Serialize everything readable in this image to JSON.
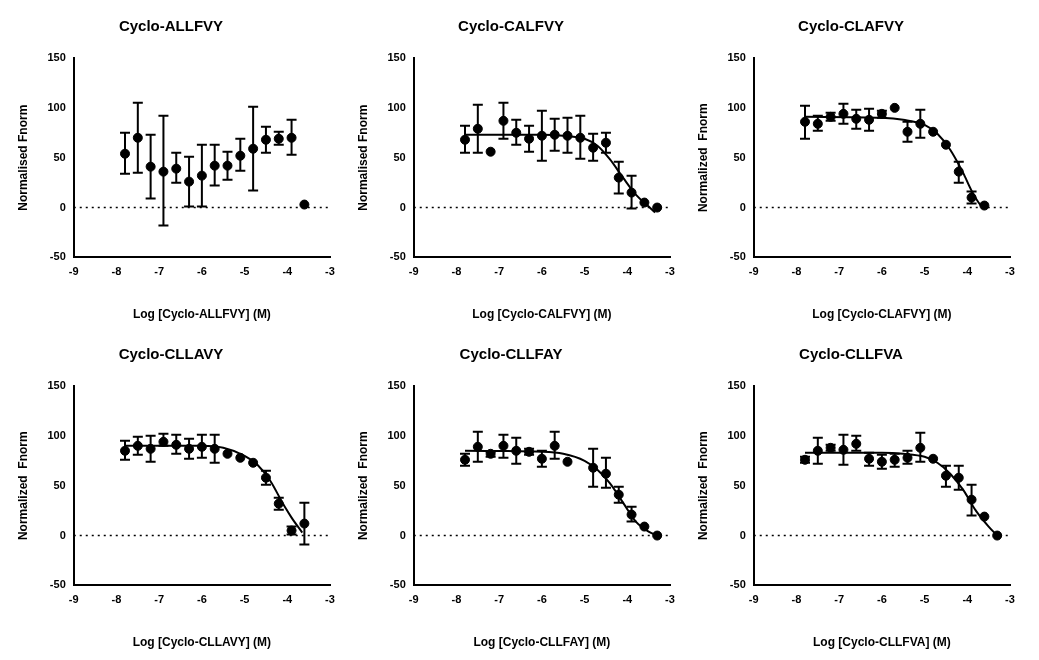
{
  "chart_data": [
    {
      "type": "scatter",
      "title": "Cyclo-ALLFVY",
      "xlabel": "Log [Cyclo-ALLFVY] (M)",
      "ylabel": "Normalised Fnorm",
      "xlim": [
        -9,
        -3
      ],
      "xticks": [
        -9,
        -8,
        -7,
        -6,
        -5,
        -4,
        -3
      ],
      "ylim": [
        -50,
        150
      ],
      "yticks": [
        -50,
        0,
        50,
        100,
        150
      ],
      "grid": false,
      "legend": false,
      "ref_lines": [
        {
          "axis": "y",
          "value": 0,
          "line_style": "dotted",
          "color": "#000000"
        }
      ],
      "series": [
        {
          "type": "scatter",
          "marker": "circle",
          "color": "#000000",
          "x": [
            -7.8,
            -7.5,
            -7.2,
            -6.9,
            -6.6,
            -6.3,
            -6.0,
            -5.7,
            -5.4,
            -5.1,
            -4.8,
            -4.5,
            -4.2,
            -3.9,
            -3.6
          ],
          "values": [
            54,
            70,
            41,
            36,
            39,
            26,
            32,
            42,
            42,
            52,
            59,
            68,
            69,
            70,
            3
          ],
          "errors": [
            [
              34,
              75
            ],
            [
              35,
              105
            ],
            [
              9,
              73
            ],
            [
              -18,
              92
            ],
            [
              25,
              55
            ],
            [
              1,
              51
            ],
            [
              1,
              63
            ],
            [
              22,
              63
            ],
            [
              28,
              56
            ],
            [
              37,
              69
            ],
            [
              17,
              101
            ],
            [
              55,
              81
            ],
            [
              63,
              76
            ],
            [
              53,
              88
            ],
            null
          ]
        }
      ]
    },
    {
      "type": "scatter",
      "title": "Cyclo-CALFVY",
      "xlabel": "Log [Cyclo-CALFVY] (M)",
      "ylabel": "Normalised Fnorm",
      "xlim": [
        -9,
        -3
      ],
      "xticks": [
        -9,
        -8,
        -7,
        -6,
        -5,
        -4,
        -3
      ],
      "ylim": [
        -50,
        150
      ],
      "yticks": [
        -50,
        0,
        50,
        100,
        150
      ],
      "grid": false,
      "legend": false,
      "ref_lines": [
        {
          "axis": "y",
          "value": 0,
          "line_style": "dotted",
          "color": "#000000"
        }
      ],
      "series": [
        {
          "type": "scatter",
          "marker": "circle",
          "color": "#000000",
          "x": [
            -7.8,
            -7.5,
            -7.2,
            -6.9,
            -6.6,
            -6.3,
            -6.0,
            -5.7,
            -5.4,
            -5.1,
            -4.8,
            -4.5,
            -4.2,
            -3.9,
            -3.6,
            -3.3
          ],
          "values": [
            68,
            79,
            56,
            87,
            75,
            69,
            72,
            73,
            72,
            70,
            60,
            65,
            30,
            15,
            5,
            0
          ],
          "errors": [
            [
              55,
              82
            ],
            [
              55,
              103
            ],
            null,
            [
              69,
              105
            ],
            [
              63,
              88
            ],
            [
              56,
              82
            ],
            [
              47,
              97
            ],
            [
              57,
              89
            ],
            [
              55,
              90
            ],
            [
              49,
              92
            ],
            [
              47,
              74
            ],
            [
              55,
              75
            ],
            [
              14,
              46
            ],
            [
              -1,
              32
            ],
            null,
            null
          ]
        },
        {
          "type": "line",
          "marker": "none",
          "color": "#000000",
          "x": [
            -7.8,
            -6,
            -5.5,
            -5,
            -4.7,
            -4.4,
            -4.1,
            -3.8,
            -3.5,
            -3.35
          ],
          "values": [
            73,
            73,
            72,
            69,
            62,
            48,
            30,
            13,
            1,
            -5
          ]
        }
      ]
    },
    {
      "type": "scatter",
      "title": "Cyclo-CLAFVY",
      "xlabel": "Log [Cyclo-CLAFVY] (M)",
      "ylabel": "Normalized  Fnorm",
      "xlim": [
        -9,
        -3
      ],
      "xticks": [
        -9,
        -8,
        -7,
        -6,
        -5,
        -4,
        -3
      ],
      "ylim": [
        -50,
        150
      ],
      "yticks": [
        -50,
        0,
        50,
        100,
        150
      ],
      "grid": false,
      "legend": false,
      "ref_lines": [
        {
          "axis": "y",
          "value": 0,
          "line_style": "dotted",
          "color": "#000000"
        }
      ],
      "series": [
        {
          "type": "scatter",
          "marker": "circle",
          "color": "#000000",
          "x": [
            -7.8,
            -7.5,
            -7.2,
            -6.9,
            -6.6,
            -6.3,
            -6.0,
            -5.7,
            -5.4,
            -5.1,
            -4.8,
            -4.5,
            -4.2,
            -3.9,
            -3.6
          ],
          "values": [
            86,
            84,
            91,
            94,
            89,
            88,
            94,
            100,
            76,
            84,
            76,
            63,
            36,
            10,
            2
          ],
          "errors": [
            [
              69,
              102
            ],
            [
              77,
              92
            ],
            [
              87,
              95
            ],
            [
              84,
              104
            ],
            [
              79,
              98
            ],
            [
              77,
              99
            ],
            [
              90,
              97
            ],
            null,
            [
              66,
              86
            ],
            [
              70,
              98
            ],
            null,
            null,
            [
              25,
              46
            ],
            [
              4,
              16
            ],
            null
          ]
        },
        {
          "type": "line",
          "marker": "none",
          "color": "#000000",
          "x": [
            -7.8,
            -6,
            -5.5,
            -5,
            -4.7,
            -4.4,
            -4.1,
            -3.9,
            -3.7,
            -3.6
          ],
          "values": [
            91,
            90,
            88,
            83,
            74,
            58,
            35,
            17,
            3,
            0
          ]
        }
      ]
    },
    {
      "type": "scatter",
      "title": "Cyclo-CLLAVY",
      "xlabel": "Log [Cyclo-CLLAVY] (M)",
      "ylabel": "Normalized  Fnorm",
      "xlim": [
        -9,
        -3
      ],
      "xticks": [
        -9,
        -8,
        -7,
        -6,
        -5,
        -4,
        -3
      ],
      "ylim": [
        -50,
        150
      ],
      "yticks": [
        -50,
        0,
        50,
        100,
        150
      ],
      "grid": false,
      "legend": false,
      "ref_lines": [
        {
          "axis": "y",
          "value": 0,
          "line_style": "dotted",
          "color": "#000000"
        }
      ],
      "series": [
        {
          "type": "scatter",
          "marker": "circle",
          "color": "#000000",
          "x": [
            -7.8,
            -7.5,
            -7.2,
            -6.9,
            -6.6,
            -6.3,
            -6.0,
            -5.7,
            -5.4,
            -5.1,
            -4.8,
            -4.5,
            -4.2,
            -3.9,
            -3.6
          ],
          "values": [
            85,
            90,
            87,
            94,
            91,
            87,
            89,
            87,
            82,
            78,
            73,
            58,
            32,
            5,
            12
          ],
          "errors": [
            [
              76,
              95
            ],
            [
              81,
              99
            ],
            [
              74,
              100
            ],
            [
              90,
              102
            ],
            [
              82,
              101
            ],
            [
              77,
              97
            ],
            [
              78,
              101
            ],
            [
              73,
              101
            ],
            null,
            null,
            null,
            [
              51,
              65
            ],
            [
              26,
              38
            ],
            [
              1,
              9
            ],
            [
              -9,
              33
            ]
          ]
        },
        {
          "type": "line",
          "marker": "none",
          "color": "#000000",
          "x": [
            -7.8,
            -6,
            -5.5,
            -5,
            -4.7,
            -4.4,
            -4.1,
            -3.9,
            -3.65
          ],
          "values": [
            90,
            90,
            88,
            80,
            71,
            55,
            32,
            18,
            3
          ]
        }
      ]
    },
    {
      "type": "scatter",
      "title": "Cyclo-CLLFAY",
      "xlabel": "Log [Cyclo-CLLFAY] (M)",
      "ylabel": "Normalized  Fnorm",
      "xlim": [
        -9,
        -3
      ],
      "xticks": [
        -9,
        -8,
        -7,
        -6,
        -5,
        -4,
        -3
      ],
      "ylim": [
        -50,
        150
      ],
      "yticks": [
        -50,
        0,
        50,
        100,
        150
      ],
      "grid": false,
      "legend": false,
      "ref_lines": [
        {
          "axis": "y",
          "value": 0,
          "line_style": "dotted",
          "color": "#000000"
        }
      ],
      "series": [
        {
          "type": "scatter",
          "marker": "circle",
          "color": "#000000",
          "x": [
            -7.8,
            -7.5,
            -7.2,
            -6.9,
            -6.6,
            -6.3,
            -6.0,
            -5.7,
            -5.4,
            -4.8,
            -4.5,
            -4.2,
            -3.9,
            -3.6,
            -3.3
          ],
          "values": [
            76,
            89,
            82,
            90,
            85,
            84,
            77,
            90,
            74,
            68,
            62,
            41,
            21,
            9,
            0
          ],
          "errors": [
            [
              70,
              82
            ],
            [
              74,
              104
            ],
            [
              79,
              84
            ],
            [
              78,
              101
            ],
            [
              72,
              98
            ],
            [
              81,
              87
            ],
            [
              69,
              85
            ],
            [
              77,
              104
            ],
            null,
            [
              49,
              87
            ],
            [
              48,
              78
            ],
            [
              33,
              49
            ],
            [
              14,
              29
            ],
            null,
            null
          ]
        },
        {
          "type": "line",
          "marker": "none",
          "color": "#000000",
          "x": [
            -7.8,
            -6,
            -5.5,
            -5,
            -4.7,
            -4.4,
            -4.1,
            -3.8,
            -3.5,
            -3.3
          ],
          "values": [
            85,
            84,
            82,
            75,
            66,
            52,
            33,
            14,
            4,
            0
          ]
        }
      ]
    },
    {
      "type": "scatter",
      "title": "Cyclo-CLLFVA",
      "xlabel": "Log [Cyclo-CLLFVA] (M)",
      "ylabel": "Normalized  Fnorm",
      "xlim": [
        -9,
        -3
      ],
      "xticks": [
        -9,
        -8,
        -7,
        -6,
        -5,
        -4,
        -3
      ],
      "ylim": [
        -50,
        150
      ],
      "yticks": [
        -50,
        0,
        50,
        100,
        150
      ],
      "grid": false,
      "legend": false,
      "ref_lines": [
        {
          "axis": "y",
          "value": 0,
          "line_style": "dotted",
          "color": "#000000"
        }
      ],
      "series": [
        {
          "type": "scatter",
          "marker": "circle",
          "color": "#000000",
          "x": [
            -7.8,
            -7.5,
            -7.2,
            -6.9,
            -6.6,
            -6.3,
            -6.0,
            -5.7,
            -5.4,
            -5.1,
            -4.8,
            -4.5,
            -4.2,
            -3.9,
            -3.6,
            -3.3
          ],
          "values": [
            76,
            85,
            88,
            86,
            92,
            77,
            74,
            76,
            78,
            88,
            77,
            60,
            58,
            36,
            19,
            0
          ],
          "errors": [
            [
              73,
              79
            ],
            [
              72,
              98
            ],
            [
              85,
              91
            ],
            [
              71,
              101
            ],
            [
              85,
              100
            ],
            [
              70,
              83
            ],
            [
              67,
              81
            ],
            [
              69,
              82
            ],
            [
              72,
              85
            ],
            [
              74,
              103
            ],
            null,
            [
              49,
              70
            ],
            [
              46,
              70
            ],
            [
              20,
              51
            ],
            null,
            null
          ]
        },
        {
          "type": "line",
          "marker": "none",
          "color": "#000000",
          "x": [
            -7.8,
            -6,
            -5.5,
            -5,
            -4.7,
            -4.4,
            -4.1,
            -3.8,
            -3.5,
            -3.3
          ],
          "values": [
            83,
            83,
            82,
            79,
            73,
            62,
            46,
            25,
            9,
            0
          ]
        }
      ]
    }
  ]
}
